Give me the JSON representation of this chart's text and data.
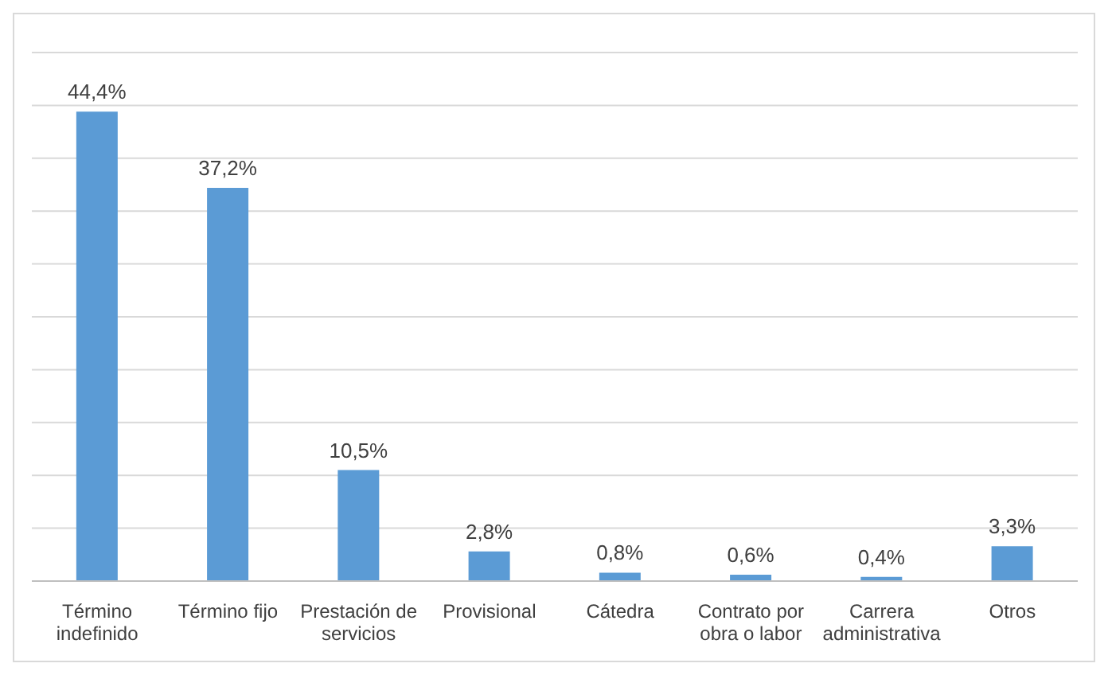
{
  "chart_data": {
    "type": "bar",
    "categories": [
      "Término indefinido",
      "Término fijo",
      "Prestación de servicios",
      "Provisional",
      "Cátedra",
      "Contrato por obra o labor",
      "Carrera administrativa",
      "Otros"
    ],
    "values": [
      44.4,
      37.2,
      10.5,
      2.8,
      0.8,
      0.6,
      0.4,
      3.3
    ],
    "value_labels": [
      "44,4%",
      "37,2%",
      "10,5%",
      "2,8%",
      "0,8%",
      "0,6%",
      "0,4%",
      "3,3%"
    ],
    "color": "#5b9bd5",
    "ylim": [
      0,
      50
    ],
    "yticks": [
      {
        "value": 0,
        "label": null
      },
      {
        "value": 5,
        "label": null
      },
      {
        "value": 10,
        "label": null
      },
      {
        "value": 15,
        "label": null
      },
      {
        "value": 20,
        "label": null
      },
      {
        "value": 25,
        "label": null
      },
      {
        "value": 30,
        "label": null
      },
      {
        "value": 35,
        "label": null
      },
      {
        "value": 40,
        "label": null
      },
      {
        "value": 45,
        "label": null
      },
      {
        "value": 50,
        "label": null
      }
    ],
    "grid": "y",
    "tick_labels": "x",
    "legend": false
  }
}
